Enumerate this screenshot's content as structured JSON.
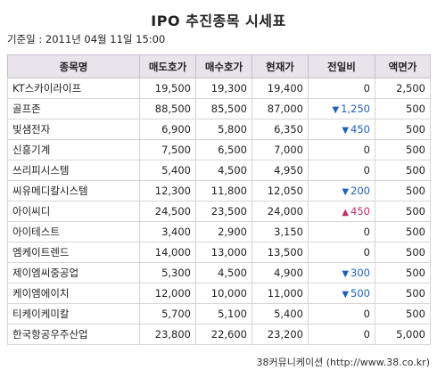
{
  "title": "IPO 추진종목 시세표",
  "base_date": "기준일 : 2011년 04월 11일 15:00",
  "headers": [
    "종목명",
    "매도호가",
    "매수호가",
    "현재가",
    "전일비",
    "액면가"
  ],
  "rows": [
    {
      "name": "KT스카이라이프",
      "ask": "19,500",
      "bid": "19,300",
      "price": "19,400",
      "change": "0",
      "dir": "",
      "par": "2,500"
    },
    {
      "name": "골프존",
      "ask": "88,500",
      "bid": "85,500",
      "price": "87,000",
      "change": "1,250",
      "dir": "down",
      "par": "500"
    },
    {
      "name": "빛샘전자",
      "ask": "6,900",
      "bid": "5,800",
      "price": "6,350",
      "change": "450",
      "dir": "down",
      "par": "500"
    },
    {
      "name": "신흥기계",
      "ask": "7,500",
      "bid": "6,500",
      "price": "7,000",
      "change": "0",
      "dir": "",
      "par": "500"
    },
    {
      "name": "쓰리피시스템",
      "ask": "5,400",
      "bid": "4,500",
      "price": "4,950",
      "change": "0",
      "dir": "",
      "par": "500"
    },
    {
      "name": "씨유메디칼시스템",
      "ask": "12,300",
      "bid": "11,800",
      "price": "12,050",
      "change": "200",
      "dir": "down",
      "par": "500"
    },
    {
      "name": "아이씨디",
      "ask": "24,500",
      "bid": "23,500",
      "price": "24,000",
      "change": "450",
      "dir": "up",
      "par": "500"
    },
    {
      "name": "아이테스트",
      "ask": "3,400",
      "bid": "2,900",
      "price": "3,150",
      "change": "0",
      "dir": "",
      "par": "500"
    },
    {
      "name": "엠케이트렌드",
      "ask": "14,000",
      "bid": "13,000",
      "price": "13,500",
      "change": "0",
      "dir": "",
      "par": "500"
    },
    {
      "name": "제이엠씨중공업",
      "ask": "5,300",
      "bid": "4,500",
      "price": "4,900",
      "change": "300",
      "dir": "down",
      "par": "500"
    },
    {
      "name": "케이엠에이치",
      "ask": "12,000",
      "bid": "10,000",
      "price": "11,000",
      "change": "500",
      "dir": "down",
      "par": "500"
    },
    {
      "name": "티케이케미칼",
      "ask": "5,700",
      "bid": "5,100",
      "price": "5,400",
      "change": "0",
      "dir": "",
      "par": "500"
    },
    {
      "name": "한국항공우주산업",
      "ask": "23,800",
      "bid": "22,600",
      "price": "23,200",
      "change": "0",
      "dir": "",
      "par": "5,000"
    }
  ],
  "arrows": {
    "down": "▼",
    "up": "▲"
  },
  "colors": {
    "header_bg": "#e9e3ec",
    "down": "#2360b8",
    "up": "#c0306e"
  },
  "source": "38커뮤니케이션 (http://www.38.co.kr)"
}
